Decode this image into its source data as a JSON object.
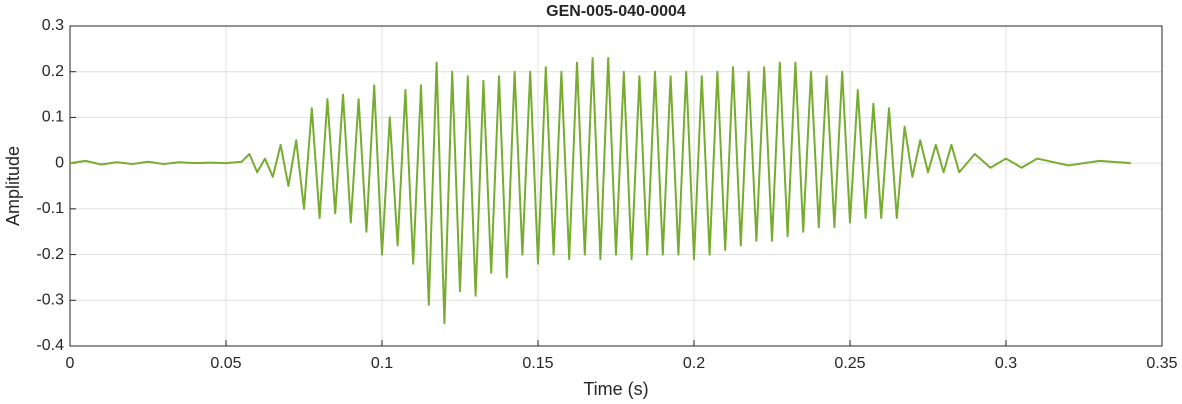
{
  "chart_data": {
    "type": "line",
    "title": "GEN-005-040-0004",
    "x_label": "Time (s)",
    "y_label": "Amplitude",
    "x": [
      0,
      0.005,
      0.01,
      0.015,
      0.02,
      0.025,
      0.03,
      0.035,
      0.04,
      0.045,
      0.05,
      0.055,
      0.0575,
      0.06,
      0.0625,
      0.065,
      0.0675,
      0.07,
      0.0725,
      0.075,
      0.0775,
      0.08,
      0.0825,
      0.085,
      0.0875,
      0.09,
      0.0925,
      0.095,
      0.0975,
      0.1,
      0.1025,
      0.105,
      0.1075,
      0.11,
      0.1125,
      0.115,
      0.1175,
      0.12,
      0.1225,
      0.125,
      0.1275,
      0.13,
      0.1325,
      0.135,
      0.1375,
      0.14,
      0.1425,
      0.145,
      0.1475,
      0.15,
      0.1525,
      0.155,
      0.1575,
      0.16,
      0.1625,
      0.165,
      0.1675,
      0.17,
      0.1725,
      0.175,
      0.1775,
      0.18,
      0.1825,
      0.185,
      0.1875,
      0.19,
      0.1925,
      0.195,
      0.1975,
      0.2,
      0.2025,
      0.205,
      0.2075,
      0.21,
      0.2125,
      0.215,
      0.2175,
      0.22,
      0.2225,
      0.225,
      0.2275,
      0.23,
      0.2325,
      0.235,
      0.2375,
      0.24,
      0.2425,
      0.245,
      0.2475,
      0.25,
      0.2525,
      0.255,
      0.2575,
      0.26,
      0.2625,
      0.265,
      0.2675,
      0.27,
      0.2725,
      0.275,
      0.2775,
      0.28,
      0.2825,
      0.285,
      0.29,
      0.295,
      0.3,
      0.305,
      0.31,
      0.32,
      0.33,
      0.34
    ],
    "series": [
      {
        "color": "#77ac30",
        "values": [
          0,
          0.005,
          -0.003,
          0.002,
          -0.002,
          0.003,
          -0.002,
          0.002,
          0,
          0.001,
          0,
          0.003,
          0.02,
          -0.02,
          0.01,
          -0.03,
          0.04,
          -0.05,
          0.05,
          -0.1,
          0.12,
          -0.12,
          0.14,
          -0.11,
          0.15,
          -0.13,
          0.14,
          -0.15,
          0.17,
          -0.2,
          0.1,
          -0.18,
          0.16,
          -0.22,
          0.17,
          -0.31,
          0.22,
          -0.35,
          0.2,
          -0.28,
          0.19,
          -0.29,
          0.18,
          -0.24,
          0.19,
          -0.25,
          0.2,
          -0.2,
          0.2,
          -0.22,
          0.21,
          -0.2,
          0.2,
          -0.21,
          0.22,
          -0.2,
          0.23,
          -0.21,
          0.23,
          -0.2,
          0.2,
          -0.21,
          0.19,
          -0.2,
          0.2,
          -0.2,
          0.19,
          -0.2,
          0.2,
          -0.21,
          0.19,
          -0.2,
          0.2,
          -0.19,
          0.21,
          -0.18,
          0.2,
          -0.17,
          0.21,
          -0.17,
          0.22,
          -0.16,
          0.22,
          -0.15,
          0.2,
          -0.14,
          0.19,
          -0.14,
          0.2,
          -0.13,
          0.16,
          -0.12,
          0.13,
          -0.12,
          0.12,
          -0.12,
          0.08,
          -0.03,
          0.05,
          -0.02,
          0.04,
          -0.02,
          0.04,
          -0.02,
          0.02,
          -0.01,
          0.01,
          -0.01,
          0.01,
          -0.005,
          0.005,
          0
        ]
      }
    ],
    "xlim": [
      0,
      0.35
    ],
    "xticks": [
      0,
      0.05,
      0.1,
      0.15,
      0.2,
      0.25,
      0.3,
      0.35
    ],
    "ylim": [
      -0.4,
      0.3
    ],
    "yticks": [
      -0.4,
      -0.3,
      -0.2,
      -0.1,
      0,
      0.1,
      0.2,
      0.3
    ],
    "grid": true
  }
}
